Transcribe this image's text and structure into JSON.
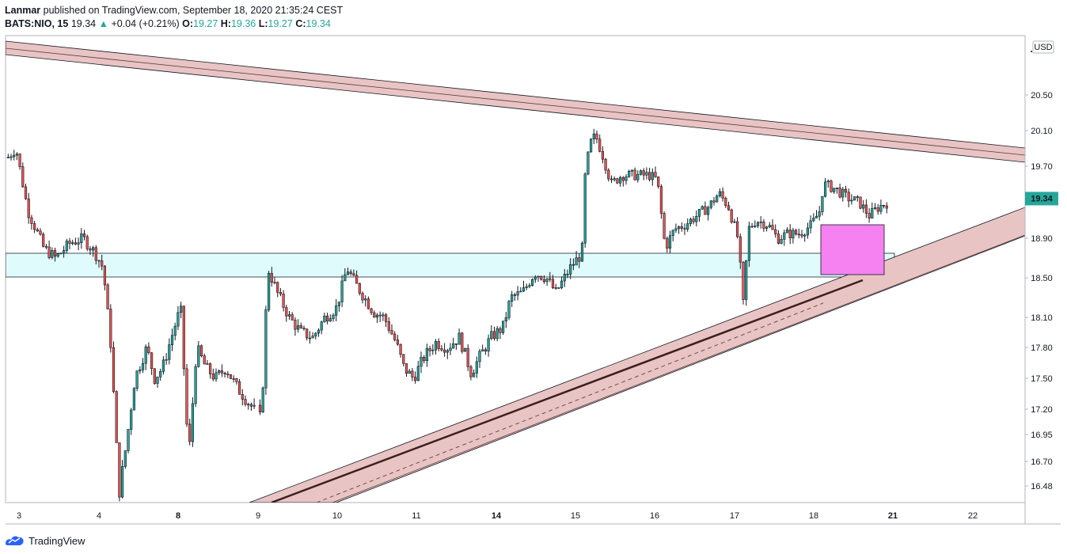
{
  "header": {
    "author": "Lanmar",
    "published": "published on TradingView.com, September 18, 2020 21:35:24 CEST",
    "symbol": "BATS:NIO, 15",
    "last": "19.34",
    "change": "+0.04 (+0.21%)",
    "o_label": "O:",
    "o_value": "19.27",
    "h_label": "H:",
    "h_value": "19.36",
    "l_label": "L:",
    "l_value": "19.27",
    "c_label": "C:",
    "c_value": "19.34"
  },
  "footer": {
    "brand": "TradingView"
  },
  "colors": {
    "up": "#26a69a",
    "down": "#ef5350",
    "candle_outline": "#131722",
    "channel_fill": "#e8c4c4",
    "zone_fill": "#e0fbfb",
    "magenta_box": "#f582f0"
  },
  "chart_data": {
    "type": "candlestick",
    "currency": "USD",
    "current_price": "19.34",
    "y_ticks": [
      "20.50",
      "20.10",
      "19.70",
      "18.90",
      "18.50",
      "18.10",
      "17.80",
      "17.50",
      "17.20",
      "16.95",
      "16.70",
      "16.48"
    ],
    "x_ticks": [
      {
        "label": "3",
        "bold": false
      },
      {
        "label": "4",
        "bold": false
      },
      {
        "label": "8",
        "bold": true
      },
      {
        "label": "9",
        "bold": false
      },
      {
        "label": "10",
        "bold": false
      },
      {
        "label": "11",
        "bold": false
      },
      {
        "label": "14",
        "bold": true
      },
      {
        "label": "15",
        "bold": false
      },
      {
        "label": "16",
        "bold": false
      },
      {
        "label": "17",
        "bold": false
      },
      {
        "label": "18",
        "bold": false
      },
      {
        "label": "21",
        "bold": true
      },
      {
        "label": "22",
        "bold": false
      }
    ],
    "candles_keypoints": [
      [
        0,
        19.8
      ],
      [
        10,
        19.9
      ],
      [
        25,
        19.2
      ],
      [
        45,
        18.8
      ],
      [
        60,
        18.7
      ],
      [
        78,
        18.85
      ],
      [
        95,
        18.9
      ],
      [
        110,
        18.75
      ],
      [
        120,
        18.6
      ],
      [
        130,
        17.8
      ],
      [
        140,
        16.4
      ],
      [
        150,
        16.9
      ],
      [
        160,
        17.5
      ],
      [
        175,
        17.8
      ],
      [
        185,
        17.5
      ],
      [
        195,
        17.6
      ],
      [
        210,
        18.0
      ],
      [
        218,
        18.2
      ],
      [
        228,
        16.7
      ],
      [
        238,
        17.8
      ],
      [
        250,
        17.6
      ],
      [
        262,
        17.5
      ],
      [
        275,
        17.6
      ],
      [
        290,
        17.4
      ],
      [
        305,
        17.25
      ],
      [
        320,
        17.1
      ],
      [
        328,
        18.6
      ],
      [
        340,
        18.35
      ],
      [
        355,
        18.1
      ],
      [
        370,
        17.95
      ],
      [
        385,
        17.9
      ],
      [
        400,
        18.1
      ],
      [
        415,
        18.2
      ],
      [
        428,
        18.6
      ],
      [
        438,
        18.45
      ],
      [
        450,
        18.3
      ],
      [
        462,
        18.15
      ],
      [
        475,
        18.1
      ],
      [
        490,
        17.85
      ],
      [
        500,
        17.6
      ],
      [
        512,
        17.5
      ],
      [
        525,
        17.7
      ],
      [
        540,
        17.85
      ],
      [
        555,
        17.8
      ],
      [
        570,
        17.9
      ],
      [
        585,
        17.55
      ],
      [
        595,
        17.7
      ],
      [
        610,
        17.9
      ],
      [
        625,
        18.0
      ],
      [
        635,
        18.3
      ],
      [
        650,
        18.35
      ],
      [
        665,
        18.55
      ],
      [
        680,
        18.5
      ],
      [
        692,
        18.35
      ],
      [
        710,
        18.6
      ],
      [
        725,
        18.75
      ],
      [
        729,
        19.6
      ],
      [
        735,
        19.95
      ],
      [
        742,
        20.05
      ],
      [
        752,
        19.8
      ],
      [
        762,
        19.5
      ],
      [
        775,
        19.6
      ],
      [
        790,
        19.6
      ],
      [
        810,
        19.6
      ],
      [
        820,
        19.55
      ],
      [
        830,
        18.8
      ],
      [
        842,
        19.0
      ],
      [
        855,
        19.05
      ],
      [
        870,
        19.15
      ],
      [
        885,
        19.25
      ],
      [
        898,
        19.4
      ],
      [
        910,
        19.25
      ],
      [
        922,
        18.9
      ],
      [
        929,
        18.2
      ],
      [
        935,
        19.0
      ],
      [
        945,
        19.1
      ],
      [
        960,
        19.05
      ],
      [
        972,
        18.9
      ],
      [
        985,
        18.95
      ],
      [
        1000,
        18.95
      ],
      [
        1015,
        19.05
      ],
      [
        1025,
        19.2
      ],
      [
        1030,
        19.5
      ],
      [
        1045,
        19.45
      ],
      [
        1060,
        19.35
      ],
      [
        1075,
        19.3
      ],
      [
        1088,
        19.15
      ],
      [
        1100,
        19.25
      ],
      [
        1112,
        19.3
      ],
      [
        1122,
        19.34
      ]
    ]
  }
}
